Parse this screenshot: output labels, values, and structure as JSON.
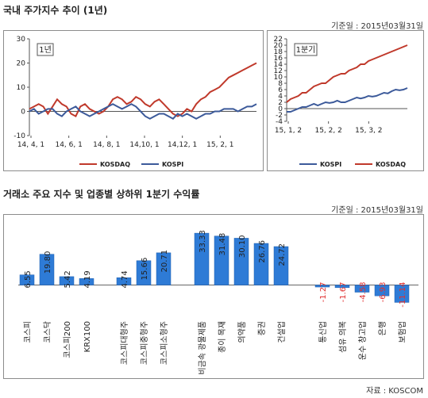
{
  "section1": {
    "title": "국내 주가지수 추이 (1년)",
    "ref_date": "기준일 : 2015년03월31일"
  },
  "section2": {
    "title": "거래소 주요 지수 및 업종별 상하위 1분기 수익률",
    "ref_date": "기준일 : 2015년03월31일"
  },
  "source": "자료 : KOSCOM",
  "colors": {
    "kosdaq": "#c0392b",
    "kospi": "#3c5a9a",
    "bar": "#2e7bd6",
    "negative_label": "#e03030"
  },
  "chart_data": [
    {
      "type": "line",
      "tag": "1년",
      "x_ticks": [
        "14, 4, 1",
        "14, 6, 1",
        "14, 8, 1",
        "14,10, 1",
        "14,12, 1",
        "15, 2, 1"
      ],
      "ylim": [
        -10,
        30
      ],
      "y_ticks": [
        -10,
        0,
        10,
        20,
        30
      ],
      "grid": false,
      "legend": "bottom",
      "series": [
        {
          "name": "KOSDAQ",
          "color": "#c0392b",
          "values": [
            1,
            2,
            3,
            2,
            -1,
            2,
            5,
            3,
            2,
            -1,
            -2,
            2,
            3,
            1,
            0,
            -1,
            0,
            2,
            5,
            6,
            5,
            3,
            4,
            6,
            5,
            3,
            2,
            4,
            5,
            3,
            1,
            -1,
            -2,
            -1,
            1,
            0,
            3,
            5,
            6,
            8,
            9,
            10,
            12,
            14,
            15,
            16,
            17,
            18,
            19,
            20
          ]
        },
        {
          "name": "KOSPI",
          "color": "#3c5a9a",
          "values": [
            0,
            1,
            -1,
            0,
            1,
            1,
            -1,
            -2,
            0,
            1,
            2,
            0,
            -1,
            -2,
            -1,
            0,
            1,
            2,
            3,
            2,
            1,
            2,
            3,
            2,
            0,
            -2,
            -3,
            -2,
            -1,
            -1,
            -2,
            -3,
            -1,
            -2,
            -1,
            -2,
            -3,
            -2,
            -1,
            -1,
            0,
            0,
            1,
            1,
            1,
            0,
            1,
            2,
            2,
            3
          ]
        }
      ]
    },
    {
      "type": "line",
      "tag": "1분기",
      "x_ticks": [
        "15, 1, 2",
        "15, 2, 2",
        "15, 3, 2"
      ],
      "ylim": [
        -4,
        22
      ],
      "y_ticks": [
        -4,
        -2,
        0,
        2,
        4,
        6,
        8,
        10,
        12,
        14,
        16,
        18,
        20,
        22
      ],
      "grid": false,
      "legend": "bottom",
      "series": [
        {
          "name": "KOSPI",
          "color": "#3c5a9a",
          "values": [
            -1,
            -1,
            -0.5,
            0,
            0.5,
            0.5,
            1,
            1.5,
            1,
            1.5,
            2,
            1.8,
            2,
            2.5,
            2,
            2,
            2.5,
            3,
            3.5,
            3.2,
            3.5,
            4,
            3.8,
            4,
            4.5,
            5,
            4.8,
            5.5,
            6,
            5.8,
            6,
            6.5
          ]
        },
        {
          "name": "KOSDAQ",
          "color": "#c0392b",
          "values": [
            2,
            3,
            3.5,
            4,
            5,
            5,
            6,
            7,
            7.5,
            8,
            8,
            9,
            10,
            10.5,
            11,
            11,
            12,
            12.5,
            13,
            14,
            14,
            15,
            15.5,
            16,
            16.5,
            17,
            17.5,
            18,
            18.5,
            19,
            19.5,
            20
          ]
        }
      ]
    },
    {
      "type": "bar",
      "ylim": [
        -15,
        40
      ],
      "grid": false,
      "groups": [
        {
          "categories": [
            "코스피",
            "코스닥",
            "코스피200",
            "KRX100"
          ],
          "values": [
            6.55,
            19.8,
            5.42,
            4.19
          ]
        },
        {
          "categories": [
            "코스피대형주",
            "코스피중형주",
            "코스피소형주"
          ],
          "values": [
            4.74,
            15.66,
            20.71
          ]
        },
        {
          "categories": [
            "비금속 광물제품",
            "종이 목재",
            "의약품",
            "증권",
            "건설업"
          ],
          "values": [
            33.33,
            31.48,
            30.1,
            26.76,
            24.72
          ]
        },
        {
          "categories": [
            "통신업",
            "섬유 의복",
            "운수 창고업",
            "은행",
            "보험업"
          ],
          "values": [
            -1.27,
            -1.67,
            -4.58,
            -6.93,
            -11.14
          ]
        }
      ],
      "data_labels": [
        [
          "6.55",
          "19.80",
          "5.42",
          "4.19"
        ],
        [
          "4.74",
          "15.66",
          "20.71"
        ],
        [
          "33.33",
          "31.48",
          "30.10",
          "26.76",
          "24.72"
        ],
        [
          "-1.27",
          "-1.67",
          "-4.58",
          "-6.93",
          "-11.14"
        ]
      ]
    }
  ]
}
